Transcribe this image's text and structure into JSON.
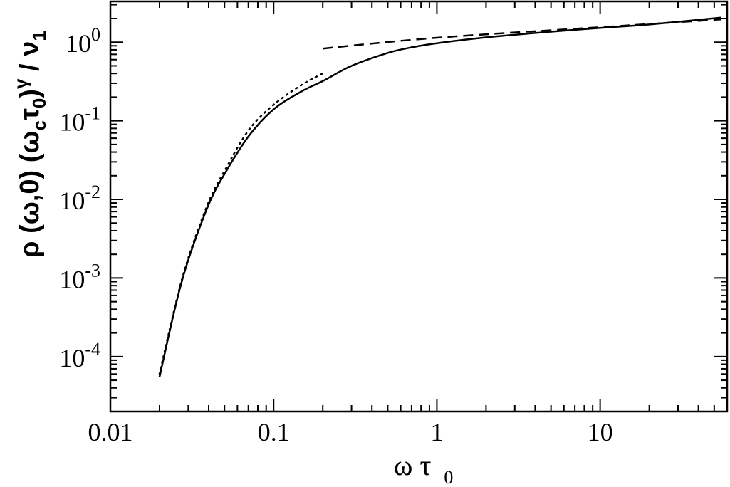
{
  "chart_data": {
    "type": "line",
    "title": "",
    "x_axis": {
      "label_main": "ω τ",
      "label_sub": "0",
      "scale": "log",
      "range": [
        0.01,
        60
      ],
      "ticks": [
        {
          "value": 0.01,
          "label": "0.01"
        },
        {
          "value": 0.1,
          "label": "0.1"
        },
        {
          "value": 1,
          "label": "1"
        },
        {
          "value": 10,
          "label": "10"
        }
      ]
    },
    "y_axis": {
      "label_parts": [
        "ρ (ω,0) (ω",
        "c",
        "τ",
        "0",
        ")",
        "γ",
        " / ν",
        "1"
      ],
      "scale": "log",
      "range": [
        2e-05,
        3.3
      ],
      "ticks": [
        {
          "value": 0.0001,
          "base": "10",
          "exp": "-4"
        },
        {
          "value": 0.001,
          "base": "10",
          "exp": "-3"
        },
        {
          "value": 0.01,
          "base": "10",
          "exp": "-2"
        },
        {
          "value": 0.1,
          "base": "10",
          "exp": "-1"
        },
        {
          "value": 1,
          "base": "10",
          "exp": "0"
        }
      ]
    },
    "grid": false,
    "legend": "none",
    "series": [
      {
        "style": "solid",
        "x": [
          0.02,
          0.025,
          0.03,
          0.04,
          0.05,
          0.07,
          0.1,
          0.15,
          0.2,
          0.3,
          0.5,
          0.7,
          1,
          2,
          5,
          10,
          20,
          55
        ],
        "y": [
          5.5e-05,
          0.00043,
          0.0017,
          0.0086,
          0.021,
          0.063,
          0.14,
          0.24,
          0.32,
          0.5,
          0.73,
          0.86,
          0.97,
          1.15,
          1.36,
          1.52,
          1.68,
          2.05
        ]
      },
      {
        "style": "dotted",
        "x": [
          0.02,
          0.025,
          0.03,
          0.04,
          0.05,
          0.07,
          0.1,
          0.15,
          0.2
        ],
        "y": [
          6e-05,
          0.00045,
          0.0018,
          0.0093,
          0.023,
          0.075,
          0.16,
          0.29,
          0.4
        ]
      },
      {
        "style": "dashed",
        "x": [
          0.2,
          1,
          10,
          55
        ],
        "y": [
          0.83,
          1.14,
          1.55,
          1.95
        ]
      }
    ]
  }
}
